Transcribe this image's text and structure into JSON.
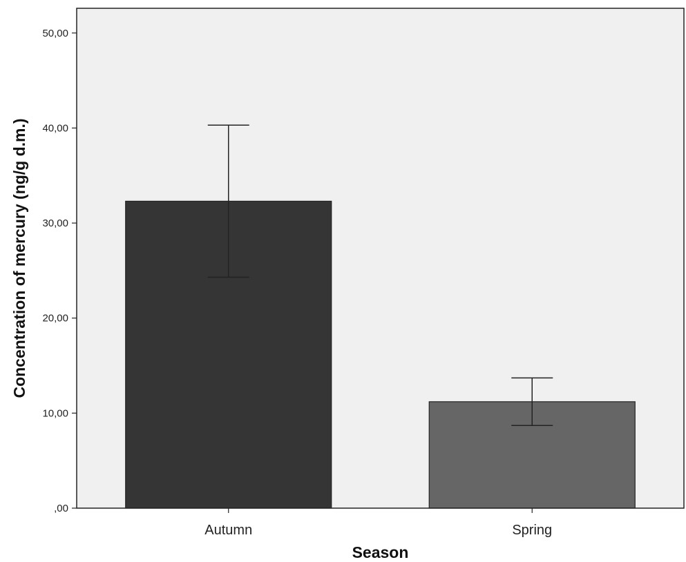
{
  "colors": {
    "plot_background": "#f0f0f0",
    "axis": "#222222",
    "bar_stroke": "#222222",
    "error_bar": "#222222"
  },
  "chart_data": {
    "type": "bar",
    "title": "",
    "xlabel": "Season",
    "ylabel": "Concentration of mercury (ng/g d.m.)",
    "categories": [
      "Autumn",
      "Spring"
    ],
    "values": [
      32.3,
      11.2
    ],
    "error_low": [
      24.3,
      8.7
    ],
    "error_high": [
      40.3,
      13.7
    ],
    "bar_colors": [
      "#353535",
      "#666666"
    ],
    "ylim": [
      0,
      52.6
    ],
    "yticks": [
      0,
      10,
      20,
      30,
      40,
      50
    ],
    "ytick_labels": [
      ",00",
      "10,00",
      "20,00",
      "30,00",
      "40,00",
      "50,00"
    ],
    "grid": false,
    "legend": "none"
  }
}
